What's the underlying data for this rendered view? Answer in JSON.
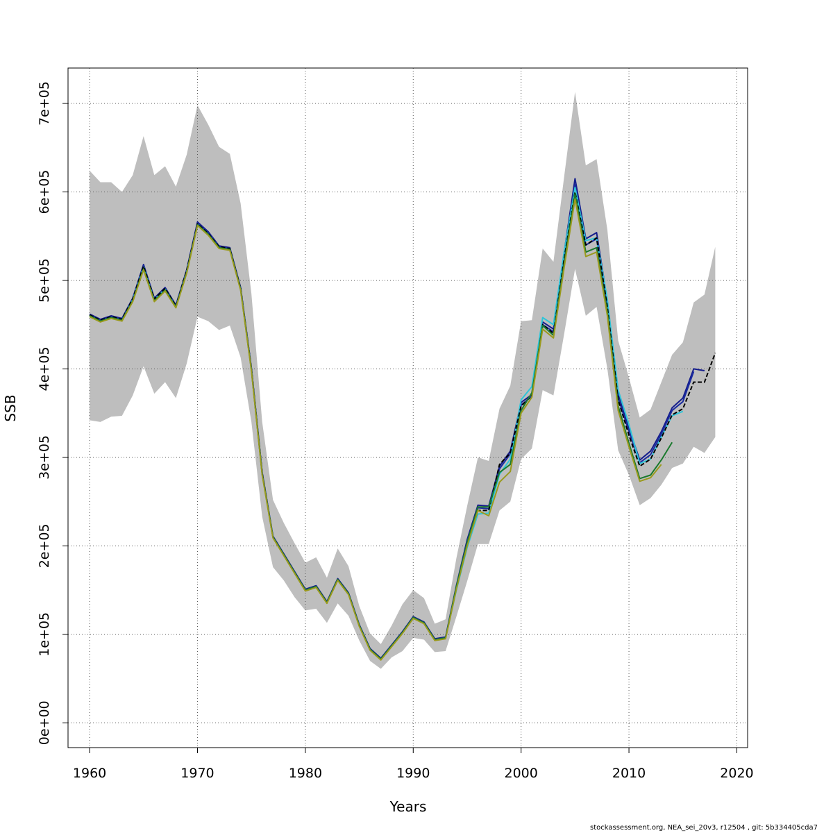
{
  "chart_data": {
    "type": "line",
    "title": "",
    "xlabel": "Years",
    "ylabel": "SSB",
    "xlim": [
      1958,
      2021
    ],
    "ylim": [
      -28000,
      740000
    ],
    "x_ticks": [
      1960,
      1970,
      1980,
      1990,
      2000,
      2010,
      2020
    ],
    "x_tick_labels": [
      "1960",
      "1970",
      "1980",
      "1990",
      "2000",
      "2010",
      "2020"
    ],
    "y_ticks": [
      0,
      100000,
      200000,
      300000,
      400000,
      500000,
      600000,
      700000
    ],
    "y_tick_labels": [
      "0e+00",
      "1e+05",
      "2e+05",
      "3e+05",
      "4e+05",
      "5e+05",
      "6e+05",
      "7e+05"
    ],
    "grid": true,
    "confidence_band": {
      "color": "#bebebe",
      "x": [
        1960,
        1961,
        1962,
        1963,
        1964,
        1965,
        1966,
        1967,
        1968,
        1969,
        1970,
        1971,
        1972,
        1973,
        1974,
        1975,
        1976,
        1977,
        1978,
        1979,
        1980,
        1981,
        1982,
        1983,
        1984,
        1985,
        1986,
        1987,
        1988,
        1989,
        1990,
        1991,
        1992,
        1993,
        1994,
        1995,
        1996,
        1997,
        1998,
        1999,
        2000,
        2001,
        2002,
        2003,
        2004,
        2005,
        2006,
        2007,
        2008,
        2009,
        2010,
        2011,
        2012,
        2013,
        2014,
        2015,
        2016,
        2017,
        2018
      ],
      "lower": [
        342000,
        340000,
        346000,
        347000,
        370000,
        403000,
        372000,
        385000,
        367000,
        406000,
        459000,
        454000,
        444000,
        449000,
        413000,
        340000,
        233000,
        176000,
        161000,
        142000,
        127000,
        129000,
        113000,
        135000,
        121000,
        93000,
        70000,
        61000,
        74000,
        81000,
        96000,
        94000,
        80000,
        81000,
        120000,
        160000,
        202000,
        202000,
        240000,
        250000,
        298000,
        310000,
        376000,
        370000,
        440000,
        513000,
        460000,
        470000,
        400000,
        308000,
        280000,
        246000,
        254000,
        269000,
        288000,
        293000,
        312000,
        305000,
        323000
      ],
      "upper": [
        624000,
        611000,
        611000,
        600000,
        619000,
        663000,
        619000,
        629000,
        606000,
        642000,
        698000,
        676000,
        651000,
        643000,
        587000,
        485000,
        340000,
        252000,
        226000,
        203000,
        181000,
        187000,
        164000,
        197000,
        177000,
        132000,
        101000,
        89000,
        110000,
        134000,
        150000,
        141000,
        112000,
        117000,
        186000,
        245000,
        300000,
        296000,
        355000,
        381000,
        454000,
        455000,
        536000,
        521000,
        618000,
        713000,
        630000,
        637000,
        557000,
        432000,
        390000,
        345000,
        354000,
        385000,
        416000,
        430000,
        475000,
        484000,
        538000
      ]
    },
    "series": [
      {
        "color": "#151d8c",
        "dashed": false,
        "x": [
          1960,
          1961,
          1962,
          1963,
          1964,
          1965,
          1966,
          1967,
          1968,
          1969,
          1970,
          1971,
          1972,
          1973,
          1974,
          1975,
          1976,
          1977,
          1978,
          1979,
          1980,
          1981,
          1982,
          1983,
          1984,
          1985,
          1986,
          1987,
          1988,
          1989,
          1990,
          1991,
          1992,
          1993,
          1994,
          1995,
          1996,
          1997,
          1998,
          1999,
          2000,
          2001,
          2002,
          2003,
          2004,
          2005,
          2006,
          2007,
          2008,
          2009,
          2010,
          2011,
          2012,
          2013,
          2014,
          2015,
          2016,
          2017
        ],
        "y": [
          462000,
          456000,
          460000,
          457000,
          480000,
          518000,
          480000,
          492000,
          472000,
          512000,
          566000,
          555000,
          539000,
          537000,
          492000,
          401000,
          283000,
          211000,
          191000,
          171000,
          151000,
          155000,
          137000,
          163000,
          147000,
          111000,
          84000,
          73000,
          88000,
          103000,
          120000,
          114000,
          95000,
          97000,
          155000,
          207000,
          246000,
          245000,
          290000,
          307000,
          362000,
          371000,
          453000,
          445000,
          532000,
          615000,
          547000,
          554000,
          476000,
          372000,
          333000,
          297000,
          307000,
          329000,
          356000,
          367000,
          400000,
          398000
        ]
      },
      {
        "color": "#1a2ba0",
        "dashed": false,
        "x": [
          1960,
          1961,
          1962,
          1963,
          1964,
          1965,
          1966,
          1967,
          1968,
          1969,
          1970,
          1971,
          1972,
          1973,
          1974,
          1975,
          1976,
          1977,
          1978,
          1979,
          1980,
          1981,
          1982,
          1983,
          1984,
          1985,
          1986,
          1987,
          1988,
          1989,
          1990,
          1991,
          1992,
          1993,
          1994,
          1995,
          1996,
          1997,
          1998,
          1999,
          2000,
          2001,
          2002,
          2003,
          2004,
          2005,
          2006,
          2007,
          2008,
          2009,
          2010,
          2011,
          2012,
          2013,
          2014,
          2015,
          2016
        ],
        "y": [
          461000,
          455000,
          459000,
          456000,
          479000,
          517000,
          479000,
          491000,
          471000,
          511000,
          565000,
          554000,
          538000,
          536000,
          491000,
          400000,
          282000,
          210000,
          190000,
          170000,
          150000,
          154000,
          136000,
          162000,
          146000,
          110000,
          83000,
          72000,
          87000,
          102000,
          119000,
          113000,
          94000,
          96000,
          153000,
          204000,
          243000,
          242000,
          287000,
          304000,
          359000,
          369000,
          450000,
          442000,
          528000,
          608000,
          540000,
          547000,
          470000,
          367000,
          330000,
          294000,
          303000,
          326000,
          353000,
          363000,
          397000
        ]
      },
      {
        "color": "#2ec5d8",
        "dashed": false,
        "x": [
          1960,
          1961,
          1962,
          1963,
          1964,
          1965,
          1966,
          1967,
          1968,
          1969,
          1970,
          1971,
          1972,
          1973,
          1974,
          1975,
          1976,
          1977,
          1978,
          1979,
          1980,
          1981,
          1982,
          1983,
          1984,
          1985,
          1986,
          1987,
          1988,
          1989,
          1990,
          1991,
          1992,
          1993,
          1994,
          1995,
          1996,
          1997,
          1998,
          1999,
          2000,
          2001,
          2002,
          2003,
          2004,
          2005,
          2006,
          2007,
          2008,
          2009,
          2010,
          2011,
          2012,
          2013,
          2014,
          2015
        ],
        "y": [
          460000,
          454000,
          458000,
          455000,
          478000,
          515000,
          478000,
          490000,
          470000,
          510000,
          563000,
          552000,
          537000,
          535000,
          490000,
          399000,
          281000,
          210000,
          190000,
          170000,
          150000,
          154000,
          136000,
          162000,
          146000,
          110000,
          83000,
          72000,
          87000,
          102000,
          119000,
          113000,
          94000,
          96000,
          150000,
          198000,
          236000,
          237000,
          281000,
          298000,
          365000,
          380000,
          458000,
          450000,
          533000,
          605000,
          545000,
          548000,
          478000,
          376000,
          337000,
          293000,
          298000,
          323000,
          347000,
          352000
        ]
      },
      {
        "color": "#000000",
        "dashed": true,
        "x": [
          1960,
          1961,
          1962,
          1963,
          1964,
          1965,
          1966,
          1967,
          1968,
          1969,
          1970,
          1971,
          1972,
          1973,
          1974,
          1975,
          1976,
          1977,
          1978,
          1979,
          1980,
          1981,
          1982,
          1983,
          1984,
          1985,
          1986,
          1987,
          1988,
          1989,
          1990,
          1991,
          1992,
          1993,
          1994,
          1995,
          1996,
          1997,
          1998,
          1999,
          2000,
          2001,
          2002,
          2003,
          2004,
          2005,
          2006,
          2007,
          2008,
          2009,
          2010,
          2011,
          2012,
          2013,
          2014,
          2015,
          2016,
          2017,
          2018
        ],
        "y": [
          461000,
          455000,
          459000,
          456000,
          479000,
          516000,
          479000,
          491000,
          471000,
          511000,
          564000,
          553000,
          538000,
          536000,
          491000,
          400000,
          282000,
          210000,
          190000,
          170000,
          150000,
          154000,
          136000,
          162000,
          146000,
          110000,
          83000,
          72000,
          87000,
          102000,
          119000,
          113000,
          94000,
          96000,
          152000,
          202000,
          240000,
          240000,
          292000,
          305000,
          358000,
          370000,
          450000,
          440000,
          525000,
          600000,
          540000,
          548000,
          470000,
          365000,
          325000,
          290000,
          298000,
          322000,
          348000,
          355000,
          385000,
          385000,
          418000
        ]
      },
      {
        "color": "#1b7a2e",
        "dashed": false,
        "x": [
          1960,
          1961,
          1962,
          1963,
          1964,
          1965,
          1966,
          1967,
          1968,
          1969,
          1970,
          1971,
          1972,
          1973,
          1974,
          1975,
          1976,
          1977,
          1978,
          1979,
          1980,
          1981,
          1982,
          1983,
          1984,
          1985,
          1986,
          1987,
          1988,
          1989,
          1990,
          1991,
          1992,
          1993,
          1994,
          1995,
          1996,
          1997,
          1998,
          1999,
          2000,
          2001,
          2002,
          2003,
          2004,
          2005,
          2006,
          2007,
          2008,
          2009,
          2010,
          2011,
          2012,
          2013,
          2014
        ],
        "y": [
          460000,
          454000,
          458000,
          455000,
          477000,
          513000,
          477000,
          489000,
          470000,
          509000,
          563000,
          552000,
          537000,
          535000,
          490000,
          399000,
          281000,
          210000,
          190000,
          170000,
          150000,
          154000,
          136000,
          162000,
          146000,
          110000,
          83000,
          72000,
          87000,
          102000,
          119000,
          113000,
          94000,
          96000,
          154000,
          204000,
          244000,
          244000,
          283000,
          292000,
          353000,
          373000,
          449000,
          438000,
          520000,
          598000,
          532000,
          537000,
          464000,
          358000,
          316000,
          276000,
          280000,
          297000,
          317000
        ]
      },
      {
        "color": "#9a9a1e",
        "dashed": false,
        "x": [
          1960,
          1961,
          1962,
          1963,
          1964,
          1965,
          1966,
          1967,
          1968,
          1969,
          1970,
          1971,
          1972,
          1973,
          1974,
          1975,
          1976,
          1977,
          1978,
          1979,
          1980,
          1981,
          1982,
          1983,
          1984,
          1985,
          1986,
          1987,
          1988,
          1989,
          1990,
          1991,
          1992,
          1993,
          1994,
          1995,
          1996,
          1997,
          1998,
          1999,
          2000,
          2001,
          2002,
          2003,
          2004,
          2005,
          2006,
          2007,
          2008,
          2009,
          2010,
          2011,
          2012,
          2013
        ],
        "y": [
          459000,
          453000,
          457000,
          454000,
          476000,
          512000,
          476000,
          488000,
          469000,
          508000,
          562000,
          551000,
          536000,
          534000,
          489000,
          398000,
          280000,
          209000,
          189000,
          169000,
          149000,
          153000,
          135000,
          161000,
          145000,
          109000,
          82000,
          71000,
          86000,
          101000,
          118000,
          112000,
          93000,
          95000,
          151000,
          200000,
          240000,
          234000,
          272000,
          284000,
          350000,
          368000,
          445000,
          435000,
          515000,
          592000,
          527000,
          532000,
          460000,
          353000,
          312000,
          273000,
          277000,
          292000
        ]
      }
    ]
  },
  "footer": {
    "text": "stockassessment.org, NEA_sei_20v3, r12504 , git: 5b334405cda7"
  }
}
